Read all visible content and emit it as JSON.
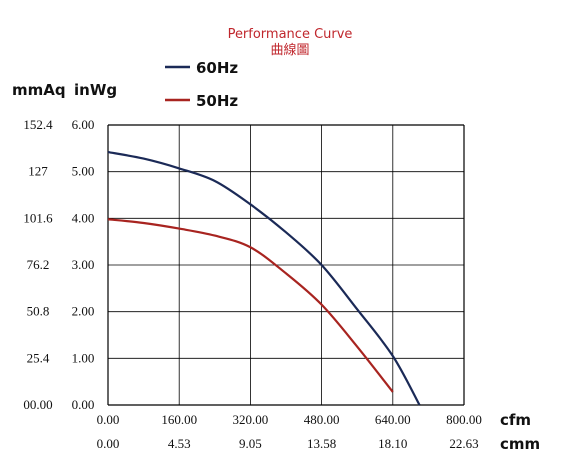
{
  "chart_data": {
    "type": "line",
    "title": "Performance Curve",
    "subtitle": "曲線圖",
    "y_units": [
      "mmAq",
      "inWg"
    ],
    "x_units": [
      "cfm",
      "cmm"
    ],
    "y_ticks_mmaq": [
      "152.4",
      "127",
      "101.6",
      "76.2",
      "50.8",
      "25.4",
      "00.00"
    ],
    "y_ticks_inwg": [
      "6.00",
      "5.00",
      "4.00",
      "3.00",
      "2.00",
      "1.00",
      "0.00"
    ],
    "x_ticks_cfm": [
      "0.00",
      "160.00",
      "320.00",
      "480.00",
      "640.00",
      "800.00"
    ],
    "x_ticks_cmm": [
      "0.00",
      "4.53",
      "9.05",
      "13.58",
      "18.10",
      "22.63"
    ],
    "xlim": [
      0,
      800
    ],
    "ylim": [
      0,
      6
    ],
    "grid": true,
    "legend_position": "top-left",
    "series": [
      {
        "name": "60Hz",
        "color": "#1b2a57",
        "x": [
          0,
          80,
          160,
          240,
          320,
          400,
          480,
          560,
          640,
          700
        ],
        "y": [
          5.42,
          5.28,
          5.07,
          4.8,
          4.3,
          3.7,
          3.0,
          2.05,
          1.05,
          0.0
        ]
      },
      {
        "name": "50Hz",
        "color": "#a82420",
        "x": [
          0,
          80,
          160,
          240,
          320,
          400,
          480,
          560,
          640
        ],
        "y": [
          3.98,
          3.9,
          3.78,
          3.63,
          3.38,
          2.82,
          2.15,
          1.25,
          0.28
        ]
      }
    ]
  }
}
